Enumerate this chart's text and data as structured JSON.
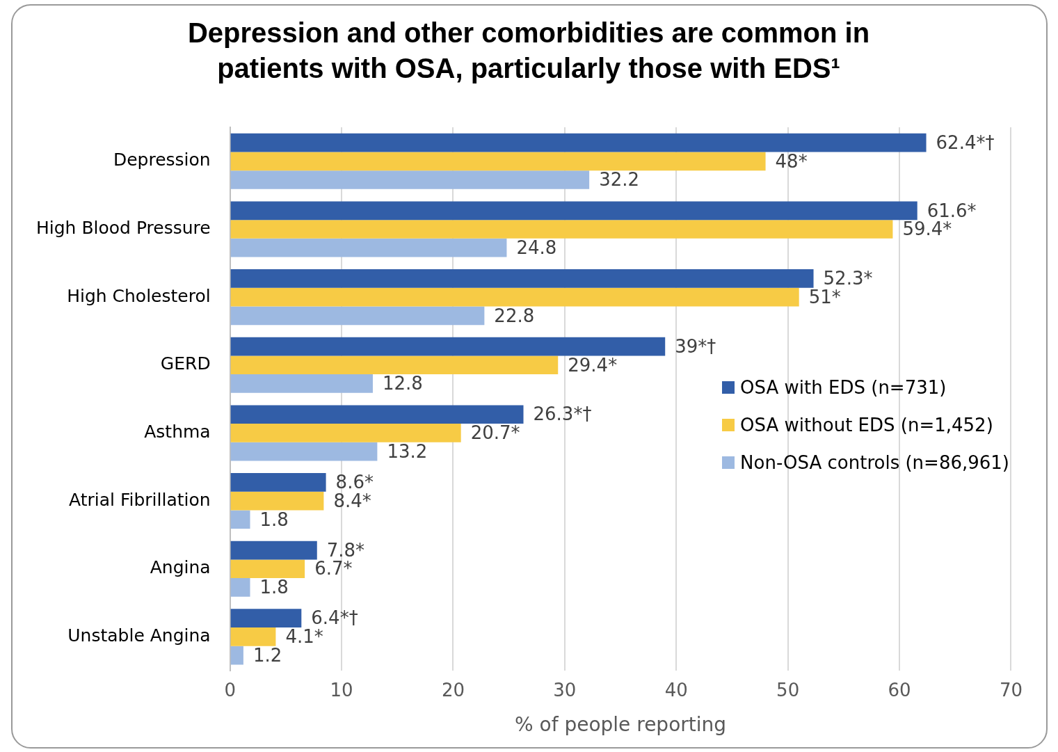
{
  "chart_data": {
    "type": "bar",
    "orientation": "horizontal",
    "title": "Depression and other comorbidities are common in patients with OSA, particularly those with EDS¹",
    "xlabel": "% of people reporting",
    "categories": [
      "Depression",
      "High Blood Pressure",
      "High Cholesterol",
      "GERD",
      "Asthma",
      "Atrial Fibrillation",
      "Angina",
      "Unstable Angina"
    ],
    "series": [
      {
        "name": "OSA with EDS (n=731)",
        "color": "#325ea8",
        "values": [
          62.4,
          61.6,
          52.3,
          39,
          26.3,
          8.6,
          7.8,
          6.4
        ],
        "value_labels": [
          "62.4*†",
          "61.6*",
          "52.3*",
          "39*†",
          "26.3*†",
          "8.6*",
          "7.8*",
          "6.4*†"
        ]
      },
      {
        "name": "OSA without EDS (n=1,452)",
        "color": "#f7cb45",
        "values": [
          48,
          59.4,
          51,
          29.4,
          20.7,
          8.4,
          6.7,
          4.1
        ],
        "value_labels": [
          "48*",
          "59.4*",
          "51*",
          "29.4*",
          "20.7*",
          "8.4*",
          "6.7*",
          "4.1*"
        ]
      },
      {
        "name": "Non-OSA controls (n=86,961)",
        "color": "#9db9e1",
        "values": [
          32.2,
          24.8,
          22.8,
          12.8,
          13.2,
          1.8,
          1.8,
          1.2
        ],
        "value_labels": [
          "32.2",
          "24.8",
          "22.8",
          "12.8",
          "13.2",
          "1.8",
          "1.8",
          "1.2"
        ]
      }
    ],
    "xlim": [
      0,
      70
    ],
    "xticks": [
      0,
      10,
      20,
      30,
      40,
      50,
      60,
      70
    ],
    "grid": "x",
    "legend": "right"
  }
}
